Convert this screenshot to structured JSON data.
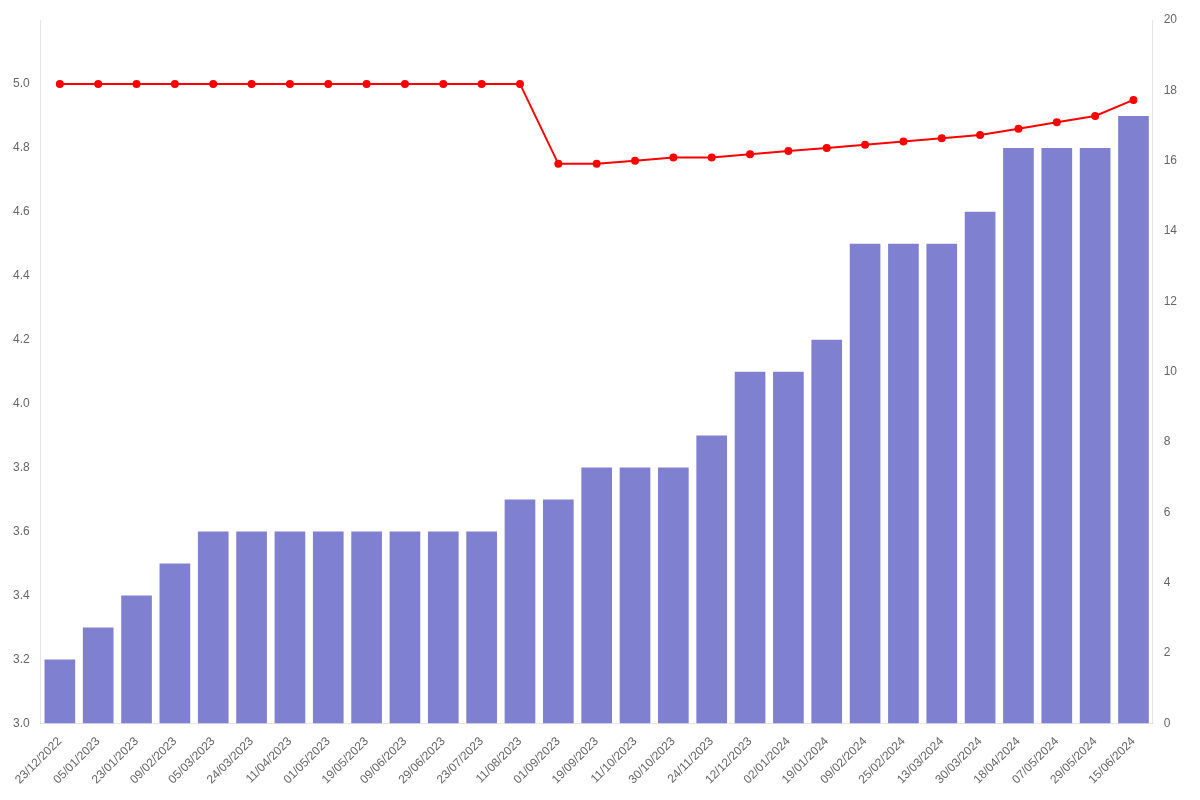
{
  "chart_data": {
    "type": "bar",
    "categories": [
      "23/12/2022",
      "05/01/2023",
      "23/01/2023",
      "09/02/2023",
      "05/03/2023",
      "24/03/2023",
      "11/04/2023",
      "01/05/2023",
      "19/05/2023",
      "09/06/2023",
      "29/06/2023",
      "23/07/2023",
      "11/08/2023",
      "01/09/2023",
      "19/09/2023",
      "11/10/2023",
      "30/10/2023",
      "24/11/2023",
      "12/12/2023",
      "02/01/2024",
      "19/01/2024",
      "09/02/2024",
      "25/02/2024",
      "13/03/2024",
      "30/03/2024",
      "18/04/2024",
      "07/05/2024",
      "29/05/2024",
      "15/06/2024"
    ],
    "series": [
      {
        "type": "bar",
        "color": "#8080d0",
        "values": [
          3.2,
          3.3,
          3.4,
          3.5,
          3.6,
          3.6,
          3.6,
          3.6,
          3.6,
          3.6,
          3.6,
          3.6,
          3.7,
          3.7,
          3.8,
          3.8,
          3.8,
          3.9,
          4.1,
          4.1,
          4.2,
          4.5,
          4.5,
          4.5,
          4.6,
          4.8,
          4.8,
          4.8,
          4.9
        ]
      },
      {
        "type": "line",
        "color": "#ff0000",
        "marker": "circle",
        "values": [
          5.0,
          5.0,
          5.0,
          5.0,
          5.0,
          5.0,
          5.0,
          5.0,
          5.0,
          5.0,
          5.0,
          5.0,
          5.0,
          4.75,
          4.75,
          4.76,
          4.77,
          4.77,
          4.78,
          4.79,
          4.8,
          4.81,
          4.82,
          4.83,
          4.84,
          4.86,
          4.88,
          4.9,
          4.95
        ]
      }
    ],
    "ylim": [
      3.0,
      5.2
    ],
    "yticks": [
      {
        "value": 3,
        "label": "3.0"
      },
      3.2,
      3.4,
      3.6,
      3.8,
      {
        "value": 4,
        "label": "4.0"
      },
      4.2,
      4.4,
      4.6,
      4.8,
      {
        "value": 5,
        "label": "5.0"
      }
    ],
    "y2lim": [
      0,
      20
    ],
    "y2ticks": [
      0,
      2,
      4,
      6,
      8,
      10,
      12,
      14,
      16,
      18,
      20
    ],
    "grid": false
  }
}
